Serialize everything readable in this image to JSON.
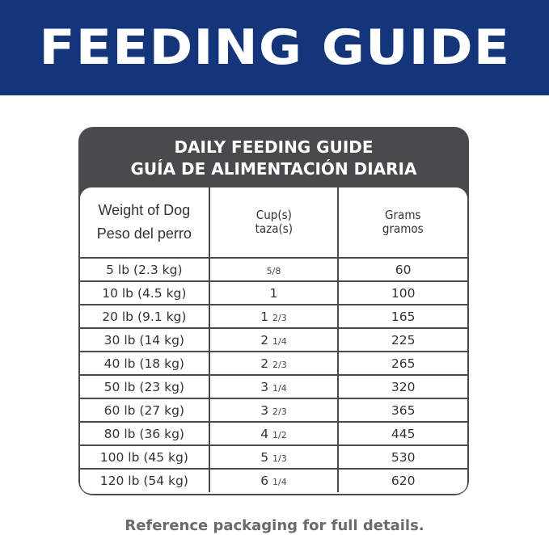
{
  "banner": {
    "title": "FEEDING GUIDE",
    "color": "#14357a"
  },
  "card": {
    "title_en": "DAILY FEEDING GUIDE",
    "title_es": "GUÍA DE ALIMENTACIÓN DIARIA",
    "color": "#4a4a4c"
  },
  "table": {
    "headers": [
      {
        "en": "Weight of Dog",
        "es": "Peso del perro"
      },
      {
        "en": "Cup(s)",
        "es": "taza(s)"
      },
      {
        "en": "Grams",
        "es": "gramos"
      }
    ],
    "rows": [
      {
        "weight": "5 lb (2.3 kg)",
        "cup_whole": "",
        "cup_frac": "5/8",
        "grams": "60"
      },
      {
        "weight": "10 lb (4.5 kg)",
        "cup_whole": "1",
        "cup_frac": "",
        "grams": "100"
      },
      {
        "weight": "20 lb (9.1 kg)",
        "cup_whole": "1",
        "cup_frac": "2/3",
        "grams": "165"
      },
      {
        "weight": "30 lb (14 kg)",
        "cup_whole": "2",
        "cup_frac": "1/4",
        "grams": "225"
      },
      {
        "weight": "40 lb (18 kg)",
        "cup_whole": "2",
        "cup_frac": "2/3",
        "grams": "265"
      },
      {
        "weight": "50 lb (23 kg)",
        "cup_whole": "3",
        "cup_frac": "1/4",
        "grams": "320"
      },
      {
        "weight": "60 lb (27 kg)",
        "cup_whole": "3",
        "cup_frac": "2/3",
        "grams": "365"
      },
      {
        "weight": "80 lb (36 kg)",
        "cup_whole": "4",
        "cup_frac": "1/2",
        "grams": "445"
      },
      {
        "weight": "100 lb (45 kg)",
        "cup_whole": "5",
        "cup_frac": "1/3",
        "grams": "530"
      },
      {
        "weight": "120 lb (54 kg)",
        "cup_whole": "6",
        "cup_frac": "1/4",
        "grams": "620"
      }
    ]
  },
  "footer": {
    "note": "Reference packaging for full details."
  }
}
